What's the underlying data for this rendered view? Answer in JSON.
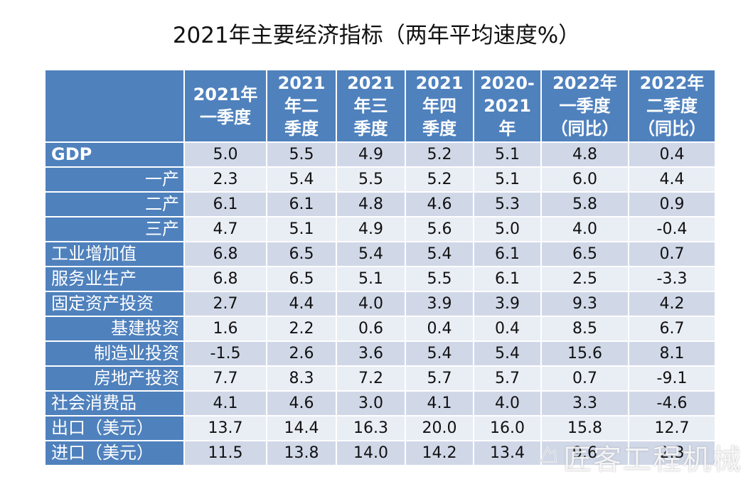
{
  "title": "2021年主要经济指标（两年平均速度%）",
  "columns": [
    {
      "lines": [
        "2021年",
        "一季度"
      ]
    },
    {
      "lines": [
        "2021",
        "年二",
        "季度"
      ]
    },
    {
      "lines": [
        "2021",
        "年三",
        "季度"
      ]
    },
    {
      "lines": [
        "2021",
        "年四",
        "季度"
      ]
    },
    {
      "lines": [
        "2020-",
        "2021",
        "年"
      ]
    },
    {
      "lines": [
        "2022年",
        "一季度",
        "（同比）"
      ]
    },
    {
      "lines": [
        "2022年",
        "二季度",
        "（同比）"
      ]
    }
  ],
  "rows": [
    {
      "label": "GDP",
      "align": "left",
      "bold": true,
      "values": [
        "5.0",
        "5.5",
        "4.9",
        "5.2",
        "5.1",
        "4.8",
        "0.4"
      ]
    },
    {
      "label": "一产",
      "align": "right",
      "bold": false,
      "values": [
        "2.3",
        "5.4",
        "5.5",
        "5.2",
        "5.1",
        "6.0",
        "4.4"
      ]
    },
    {
      "label": "二产",
      "align": "right",
      "bold": false,
      "values": [
        "6.1",
        "6.1",
        "4.8",
        "4.6",
        "5.3",
        "5.8",
        "0.9"
      ]
    },
    {
      "label": "三产",
      "align": "right",
      "bold": false,
      "values": [
        "4.7",
        "5.1",
        "4.9",
        "5.6",
        "5.0",
        "4.0",
        "-0.4"
      ]
    },
    {
      "label": "工业增加值",
      "align": "left",
      "bold": false,
      "values": [
        "6.8",
        "6.5",
        "5.4",
        "5.4",
        "6.1",
        "6.5",
        "0.7"
      ]
    },
    {
      "label": "服务业生产",
      "align": "left",
      "bold": false,
      "values": [
        "6.8",
        "6.5",
        "5.1",
        "5.5",
        "6.1",
        "2.5",
        "-3.3"
      ]
    },
    {
      "label": "固定资产投资",
      "align": "left",
      "bold": false,
      "values": [
        "2.7",
        "4.4",
        "4.0",
        "3.9",
        "3.9",
        "9.3",
        "4.2"
      ]
    },
    {
      "label": "基建投资",
      "align": "right",
      "bold": false,
      "values": [
        "1.6",
        "2.2",
        "0.6",
        "0.4",
        "0.4",
        "8.5",
        "6.7"
      ]
    },
    {
      "label": "制造业投资",
      "align": "right",
      "bold": false,
      "values": [
        "-1.5",
        "2.6",
        "3.6",
        "5.4",
        "5.4",
        "15.6",
        "8.1"
      ]
    },
    {
      "label": "房地产投资",
      "align": "right",
      "bold": false,
      "values": [
        "7.7",
        "8.3",
        "7.2",
        "5.7",
        "5.7",
        "0.7",
        "-9.1"
      ]
    },
    {
      "label": "社会消费品",
      "align": "left",
      "bold": false,
      "values": [
        "4.1",
        "4.6",
        "3.0",
        "4.1",
        "4.0",
        "3.3",
        "-4.6"
      ]
    },
    {
      "label": "出口（美元）",
      "align": "left",
      "bold": false,
      "values": [
        "13.7",
        "14.4",
        "16.3",
        "20.0",
        "16.0",
        "15.8",
        "12.7"
      ]
    },
    {
      "label": "进口（美元）",
      "align": "left",
      "bold": false,
      "values": [
        "11.5",
        "13.8",
        "14.0",
        "14.2",
        "13.4",
        "9.6",
        "2.3"
      ]
    }
  ],
  "watermark": {
    "text": "匠客工程机械",
    "icon": "craftsman-logo-icon"
  },
  "colors": {
    "header_bg": "#4f81bd",
    "row_odd_bg": "#d0d8e8",
    "row_even_bg": "#e9edf4"
  }
}
